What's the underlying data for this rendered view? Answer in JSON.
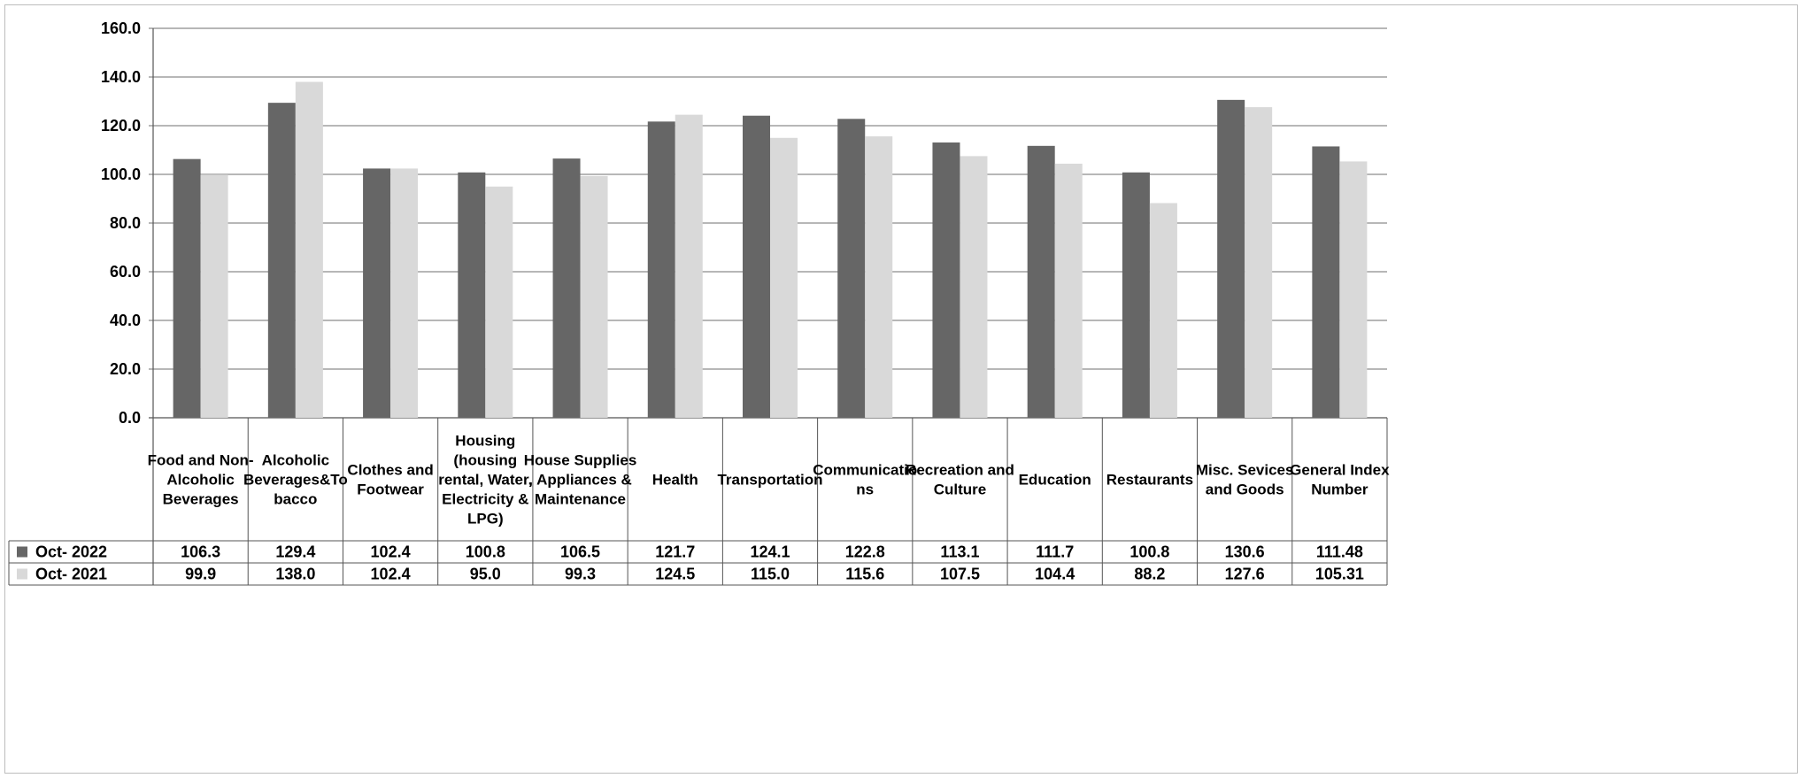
{
  "chart_data": {
    "type": "bar",
    "title": "",
    "xlabel": "",
    "ylabel": "",
    "ylim": [
      0,
      160
    ],
    "yticks": [
      "0.0",
      "20.0",
      "40.0",
      "60.0",
      "80.0",
      "100.0",
      "120.0",
      "140.0",
      "160.0"
    ],
    "grid": true,
    "legend_placement": "data-table-left",
    "categories": [
      [
        "Food and Non-",
        "Alcoholic",
        "Beverages"
      ],
      [
        "Alcoholic",
        "Beverages&To",
        "bacco"
      ],
      [
        "Clothes and",
        "Footwear"
      ],
      [
        "Housing",
        "(housing",
        "rental, Water,",
        "Electricity &",
        "LPG)"
      ],
      [
        "House Supplies",
        ", Appliances &",
        "Maintenance"
      ],
      [
        "Health"
      ],
      [
        "Transportation"
      ],
      [
        "Communicatio",
        "ns"
      ],
      [
        "Recreation and",
        "Culture"
      ],
      [
        "Education"
      ],
      [
        "Restaurants"
      ],
      [
        "Misc. Sevices",
        "and Goods"
      ],
      [
        "General Index",
        "Number"
      ]
    ],
    "series": [
      {
        "name": "Oct- 2022",
        "color": "#666666",
        "values": [
          106.3,
          129.4,
          102.4,
          100.8,
          106.5,
          121.7,
          124.1,
          122.8,
          113.1,
          111.7,
          100.8,
          130.6,
          111.48
        ],
        "labels": [
          "106.3",
          "129.4",
          "102.4",
          "100.8",
          "106.5",
          "121.7",
          "124.1",
          "122.8",
          "113.1",
          "111.7",
          "100.8",
          "130.6",
          "111.48"
        ]
      },
      {
        "name": "Oct- 2021",
        "color": "#d9d9d9",
        "values": [
          99.9,
          138.0,
          102.4,
          95.0,
          99.3,
          124.5,
          115.0,
          115.6,
          107.5,
          104.4,
          88.2,
          127.6,
          105.31
        ],
        "labels": [
          "99.9",
          "138.0",
          "102.4",
          "95.0",
          "99.3",
          "124.5",
          "115.0",
          "115.6",
          "107.5",
          "104.4",
          "88.2",
          "127.6",
          "105.31"
        ]
      }
    ]
  }
}
